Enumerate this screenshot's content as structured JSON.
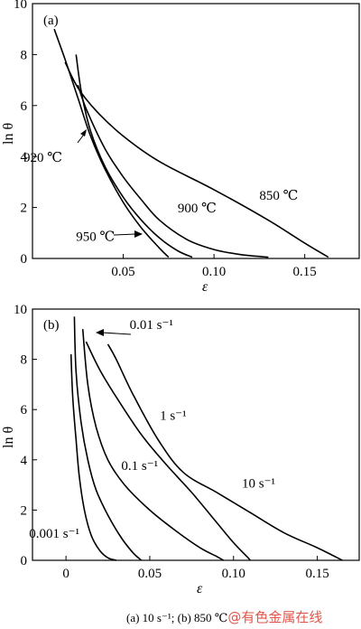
{
  "chart_data": [
    {
      "type": "line",
      "panel_label": "(a)",
      "xlabel": "ε",
      "ylabel": "ln θ",
      "xlim": [
        0,
        0.18
      ],
      "ylim": [
        0,
        10
      ],
      "xticks": [
        "0.05",
        "0.10",
        "0.15"
      ],
      "xtick_values": [
        0.05,
        0.1,
        0.15
      ],
      "yticks": [
        "0",
        "2",
        "4",
        "6",
        "8",
        "10"
      ],
      "ytick_values": [
        0,
        2,
        4,
        6,
        8,
        10
      ],
      "series": [
        {
          "name": "850 ℃",
          "x": [
            0.018,
            0.025,
            0.035,
            0.05,
            0.07,
            0.1,
            0.13,
            0.15,
            0.163
          ],
          "y": [
            7.7,
            6.7,
            5.8,
            4.8,
            3.8,
            2.7,
            1.5,
            0.6,
            0.05
          ]
        },
        {
          "name": "900 ℃",
          "x": [
            0.025,
            0.03,
            0.04,
            0.05,
            0.06,
            0.07,
            0.085,
            0.1,
            0.115,
            0.13
          ],
          "y": [
            6.8,
            5.8,
            4.3,
            3.2,
            2.3,
            1.5,
            0.75,
            0.35,
            0.15,
            0.05
          ]
        },
        {
          "name": "920 ℃",
          "x": [
            0.024,
            0.027,
            0.032,
            0.04,
            0.05,
            0.06,
            0.07,
            0.08,
            0.088
          ],
          "y": [
            8.0,
            6.5,
            5.0,
            3.6,
            2.4,
            1.5,
            0.8,
            0.3,
            0.05
          ]
        },
        {
          "name": "950 ℃",
          "x": [
            0.012,
            0.018,
            0.025,
            0.032,
            0.04,
            0.05,
            0.06,
            0.07,
            0.075
          ],
          "y": [
            9.0,
            7.8,
            6.3,
            4.8,
            3.5,
            2.2,
            1.2,
            0.4,
            0.05
          ]
        }
      ],
      "annotations": [
        {
          "text": "850 ℃",
          "x": 0.125,
          "y": 2.3
        },
        {
          "text": "900 ℃",
          "x": 0.08,
          "y": 1.8
        },
        {
          "text": "920 ℃",
          "x": -0.005,
          "y": 3.8
        },
        {
          "text": "950 ℃",
          "x": 0.024,
          "y": 0.7
        }
      ]
    },
    {
      "type": "line",
      "panel_label": "(b)",
      "xlabel": "ε",
      "ylabel": "ln θ",
      "xlim": [
        -0.02,
        0.175
      ],
      "ylim": [
        0,
        10
      ],
      "xticks": [
        "0",
        "0.05",
        "0.10",
        "0.15"
      ],
      "xtick_values": [
        0,
        0.05,
        0.1,
        0.15
      ],
      "yticks": [
        "0",
        "2",
        "4",
        "6",
        "8",
        "10"
      ],
      "ytick_values": [
        0,
        2,
        4,
        6,
        8,
        10
      ],
      "series": [
        {
          "name": "0.001 s⁻¹",
          "x": [
            0.003,
            0.004,
            0.006,
            0.008,
            0.011,
            0.015,
            0.02,
            0.025,
            0.03
          ],
          "y": [
            8.2,
            6.5,
            4.8,
            3.3,
            2.0,
            1.0,
            0.4,
            0.1,
            0.0
          ]
        },
        {
          "name": "0.01 s⁻¹",
          "x": [
            0.005,
            0.006,
            0.009,
            0.013,
            0.018,
            0.025,
            0.033,
            0.04,
            0.045
          ],
          "y": [
            9.7,
            7.5,
            5.5,
            4.0,
            2.8,
            1.8,
            0.9,
            0.3,
            0.0
          ]
        },
        {
          "name": "0.1 s⁻¹",
          "x": [
            0.01,
            0.013,
            0.018,
            0.025,
            0.035,
            0.05,
            0.065,
            0.08,
            0.09,
            0.094
          ],
          "y": [
            9.2,
            7.0,
            5.3,
            4.0,
            3.0,
            2.0,
            1.2,
            0.5,
            0.15,
            0.0
          ]
        },
        {
          "name": "1 s⁻¹",
          "x": [
            0.012,
            0.02,
            0.03,
            0.045,
            0.06,
            0.075,
            0.09,
            0.1,
            0.108,
            0.11
          ],
          "y": [
            8.7,
            7.6,
            6.5,
            5.0,
            3.8,
            2.7,
            1.5,
            0.7,
            0.15,
            0.0
          ]
        },
        {
          "name": "10 s⁻¹",
          "x": [
            0.025,
            0.03,
            0.04,
            0.055,
            0.07,
            0.09,
            0.11,
            0.13,
            0.15,
            0.165
          ],
          "y": [
            8.6,
            8.0,
            6.6,
            4.8,
            3.5,
            2.7,
            1.9,
            1.1,
            0.5,
            0.0
          ]
        }
      ],
      "annotations": [
        {
          "text": "0.01 s⁻¹",
          "x": 0.038,
          "y": 9.2
        },
        {
          "text": "1 s⁻¹",
          "x": 0.056,
          "y": 5.6
        },
        {
          "text": "0.1 s⁻¹",
          "x": 0.033,
          "y": 3.6
        },
        {
          "text": "10 s⁻¹",
          "x": 0.105,
          "y": 2.9
        },
        {
          "text": "0.001 s⁻¹",
          "x": -0.022,
          "y": 0.9
        }
      ]
    }
  ],
  "caption": {
    "text": "(a) 10 s⁻¹; (b) 850 ℃",
    "watermark": "@有色金属在线",
    "watermark_color": "#e0564a"
  }
}
